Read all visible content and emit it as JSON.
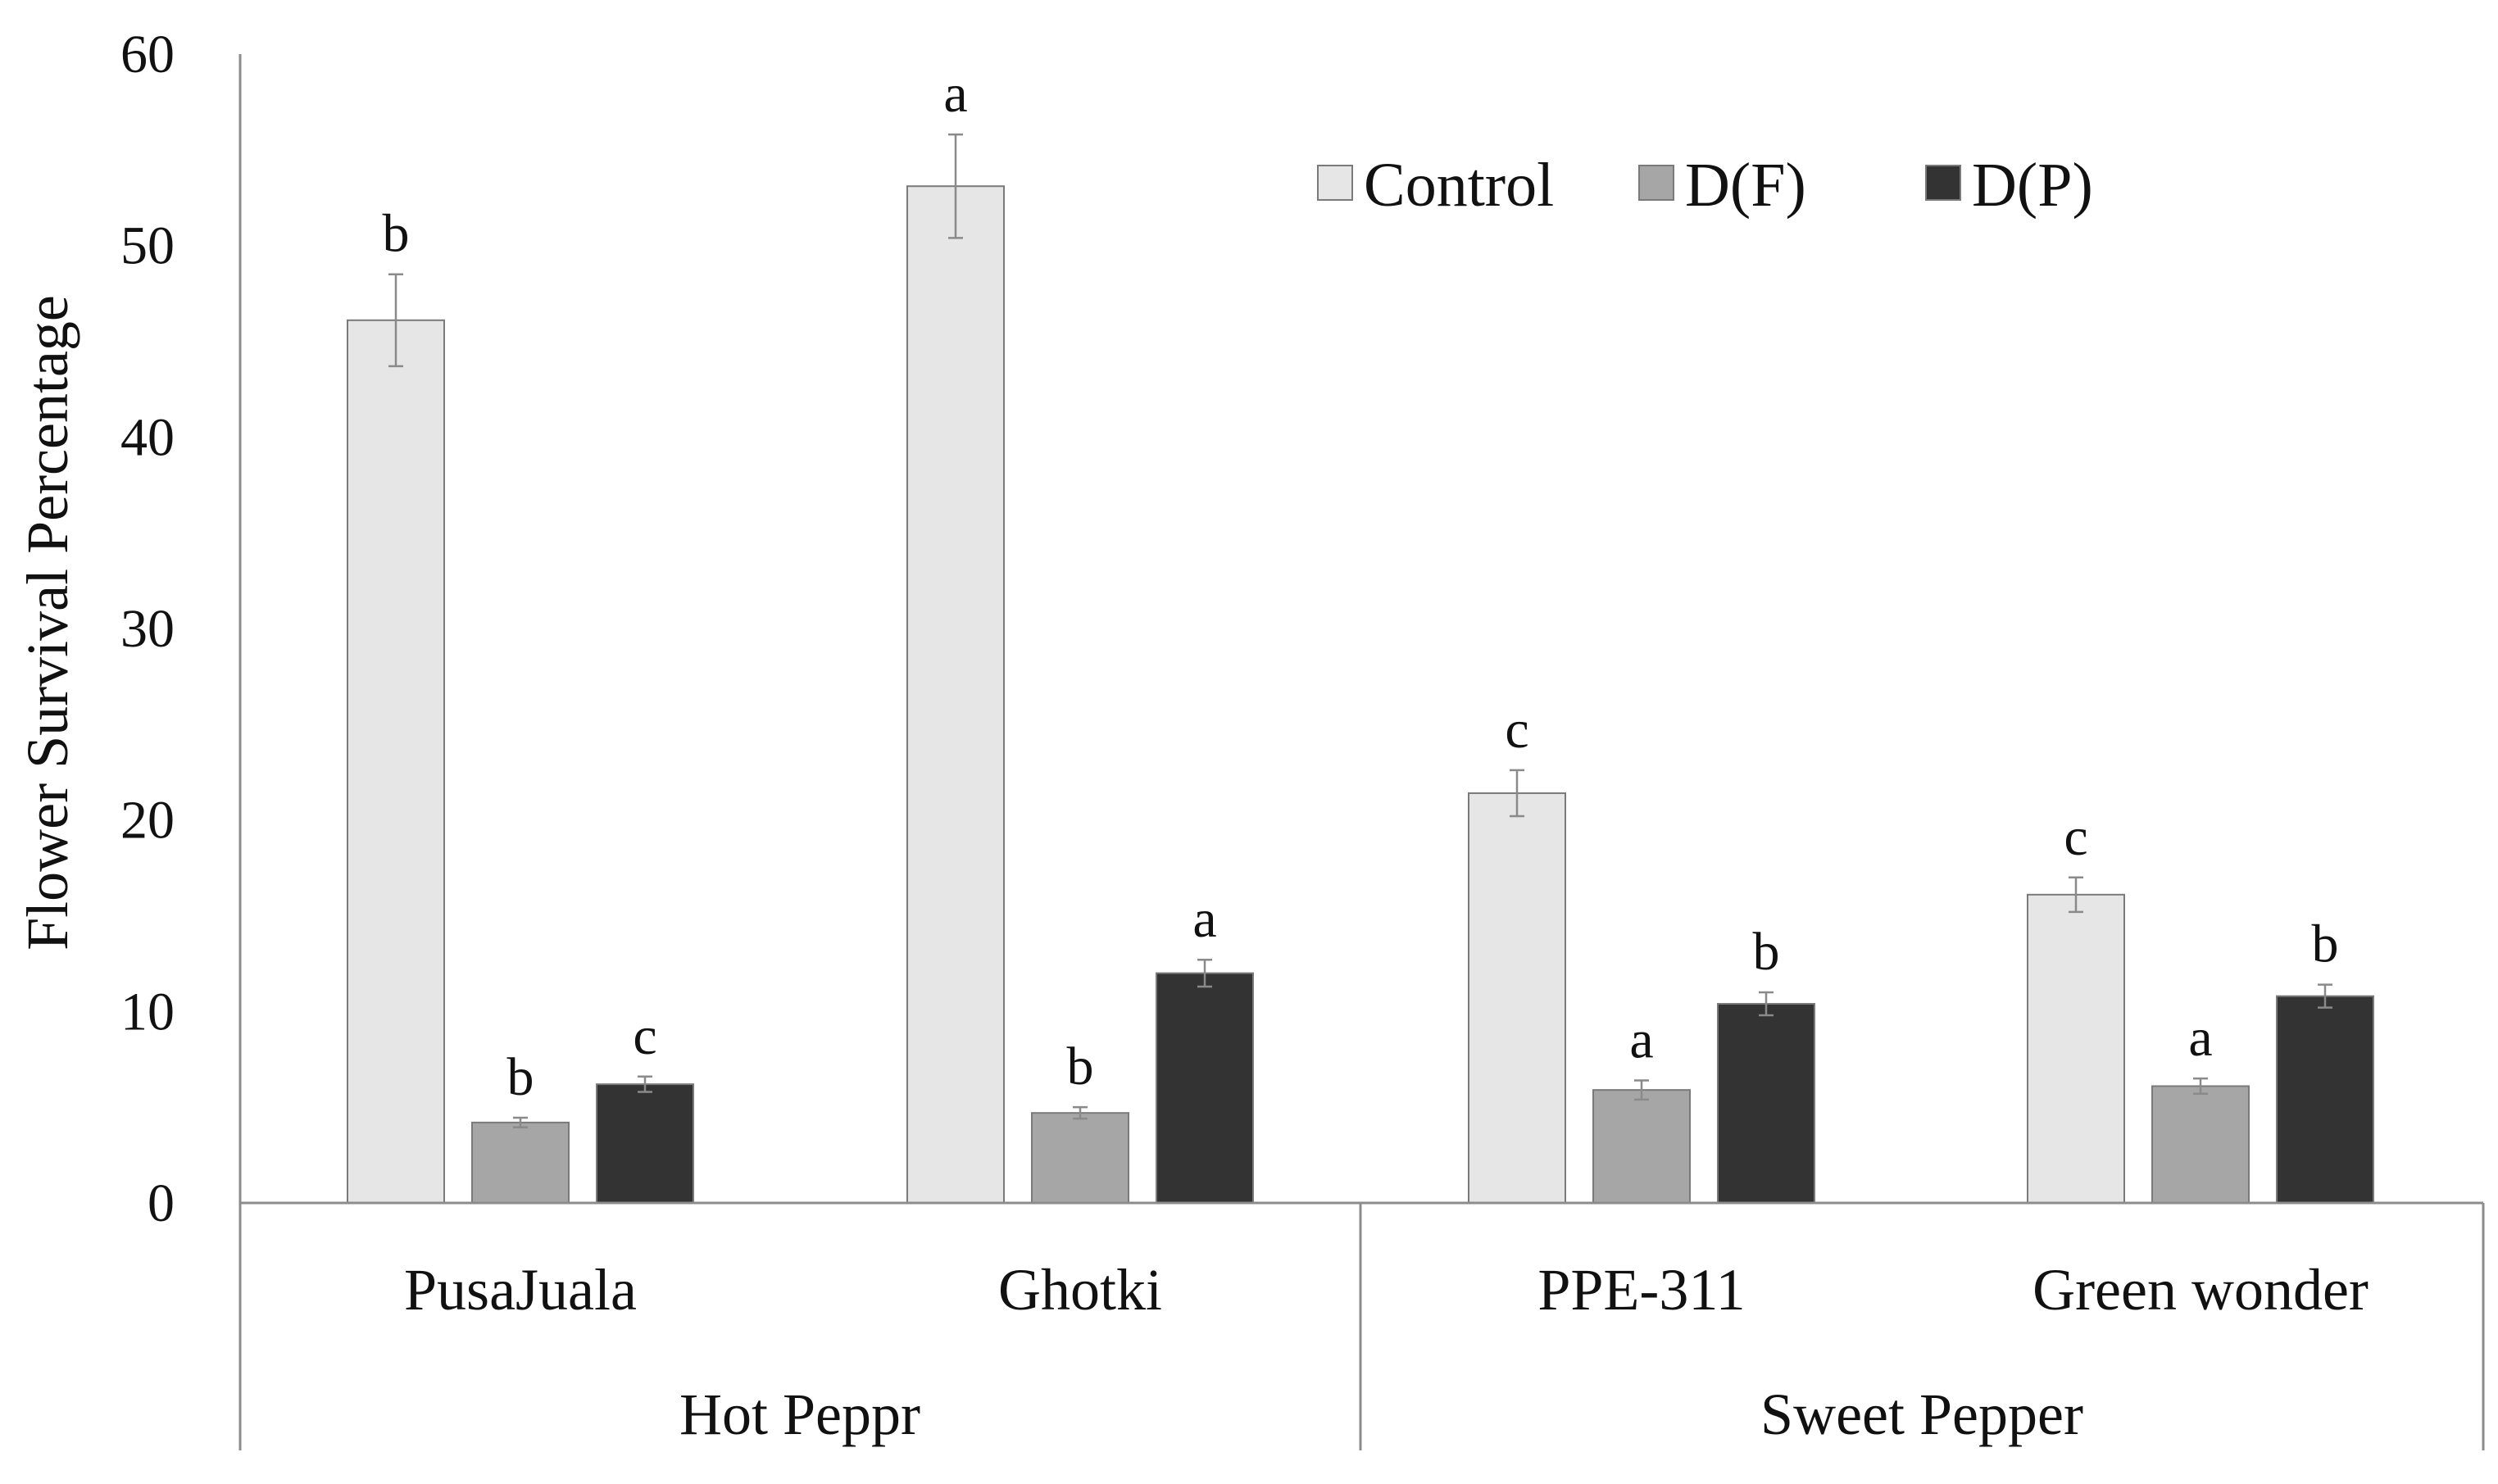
{
  "chart_data": {
    "type": "bar",
    "title": "",
    "ylabel": "Flower Survival Percentage",
    "xlabel": "",
    "ylim": [
      0,
      60
    ],
    "yticks": [
      0,
      10,
      20,
      30,
      40,
      50,
      60
    ],
    "grid": false,
    "legend_position": "top-right",
    "categories": [
      "PusaJuala",
      "Ghotki",
      "PPE-311",
      "Green wonder"
    ],
    "groups": [
      {
        "label": "Hot Peppr",
        "categories": [
          "PusaJuala",
          "Ghotki"
        ]
      },
      {
        "label": "Sweet Pepper",
        "categories": [
          "PPE-311",
          "Green wonder"
        ]
      }
    ],
    "series": [
      {
        "name": "Control",
        "color": "#e6e6e6",
        "values": [
          46.1,
          53.1,
          21.4,
          16.1
        ],
        "errors": [
          2.4,
          2.7,
          1.2,
          0.9
        ],
        "letters": [
          "b",
          "a",
          "c",
          "c"
        ]
      },
      {
        "name": "D(F)",
        "color": "#a6a6a6",
        "values": [
          4.2,
          4.7,
          5.9,
          6.1
        ],
        "errors": [
          0.25,
          0.3,
          0.5,
          0.4
        ],
        "letters": [
          "b",
          "b",
          "a",
          "a"
        ]
      },
      {
        "name": "D(P)",
        "color": "#333333",
        "values": [
          6.2,
          12.0,
          10.4,
          10.8
        ],
        "errors": [
          0.4,
          0.7,
          0.6,
          0.6
        ],
        "letters": [
          "c",
          "a",
          "b",
          "b"
        ]
      }
    ]
  }
}
